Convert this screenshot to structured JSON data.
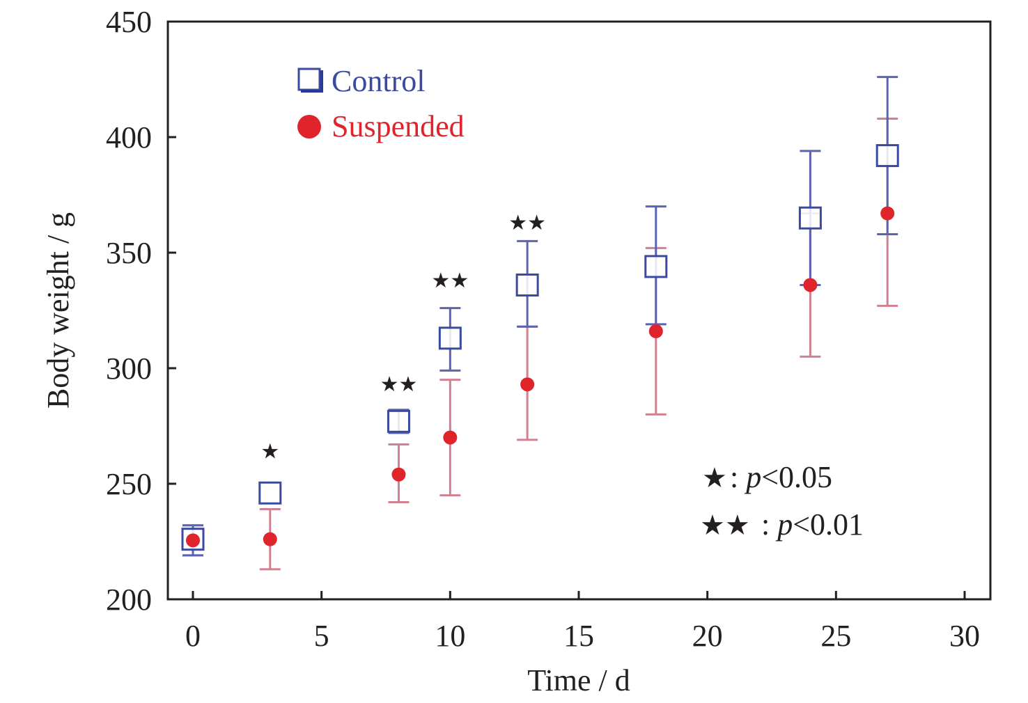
{
  "chart_data": {
    "type": "scatter",
    "title": "",
    "xlabel": "Time / d",
    "ylabel": "Body weight / g",
    "xlim": [
      -1,
      31
    ],
    "ylim": [
      200,
      450
    ],
    "xticks": [
      0,
      5,
      10,
      15,
      20,
      25,
      30
    ],
    "yticks": [
      200,
      250,
      300,
      350,
      400,
      450
    ],
    "grid": false,
    "legend_position": "top-left",
    "series": [
      {
        "name": "Control",
        "marker": "open-square",
        "color": "#3a4aa0",
        "x": [
          0,
          3,
          8,
          10,
          13,
          18,
          24,
          27
        ],
        "y": [
          226,
          246,
          277,
          313,
          336,
          344,
          365,
          392
        ],
        "err_low": [
          219,
          246,
          272,
          299,
          318,
          319,
          336,
          358
        ],
        "err_high": [
          232,
          246,
          282,
          326,
          355,
          370,
          394,
          426
        ]
      },
      {
        "name": "Suspended",
        "marker": "filled-circle",
        "color": "#e0242b",
        "x": [
          0,
          3,
          8,
          10,
          13,
          18,
          24,
          27
        ],
        "y": [
          225.5,
          226,
          254,
          270,
          293,
          316,
          336,
          367
        ],
        "err_low": [
          219,
          213,
          242,
          245,
          269,
          280,
          305,
          327
        ],
        "err_high": [
          232,
          239,
          267,
          295,
          318,
          352,
          367,
          408
        ]
      }
    ],
    "significance": [
      {
        "x": 3,
        "marks": "★",
        "y": 264
      },
      {
        "x": 8,
        "marks": "★★",
        "y": 293
      },
      {
        "x": 10,
        "marks": "★★",
        "y": 338
      },
      {
        "x": 13,
        "marks": "★★",
        "y": 363
      }
    ],
    "annotations": [
      {
        "stars": "★",
        "sep": ": ",
        "p": "p",
        "text": "<0.05"
      },
      {
        "stars": "★★",
        "sep": ": ",
        "p": "p",
        "text": "<0.01"
      }
    ],
    "error_bar_colors": {
      "Control": "#5a64b0",
      "Suspended": "#d08090"
    }
  }
}
